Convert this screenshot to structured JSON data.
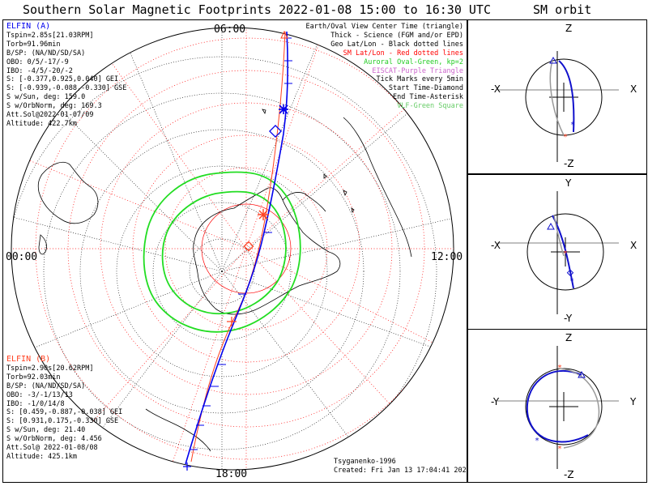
{
  "header": {
    "title": "Southern Solar Magnetic Footprints 2022-01-08 15:00 to 16:30 UTC",
    "orbit_title": "SM orbit"
  },
  "main_plot": {
    "mlt_labels": {
      "top": "06:00",
      "left": "00:00",
      "right": "12:00",
      "bottom": "18:00"
    },
    "colors": {
      "sc_a": "#0000ff",
      "sc_b": "#ff4020",
      "oval": "#22dd22",
      "geo_grid": "#000000",
      "sm_grid": "#ff0000"
    }
  },
  "spacecraft_a": {
    "name": "ELFIN (A)",
    "lines": [
      "Tspin=2.85s[21.03RPM]",
      "Torb=91.96min",
      "B/SP: (NA/ND/SD/SA)",
      "OBO: 0/5/-17/-9",
      "IBO: -4/5/-20/-2",
      "S: [-0.377,0.925,0.040] GEI",
      "S: [-0.939,-0.088,-0.330] GSE",
      "S w/Sun, deg: 159.0",
      "S w/OrbNorm, deg: 169.3",
      "Att.Sol@2022-01-07/09",
      "Altitude: 422.7km"
    ]
  },
  "spacecraft_b": {
    "name": "ELFIN (B)",
    "lines": [
      "Tspin=2.90s[20.62RPM]",
      "Torb=92.03min",
      "B/SP: (NA/ND/SD/SA)",
      "OBO: -3/-1/13/13",
      "IBO: -1/0/14/8",
      "S: [0.459,-0.887,-0.038] GEI",
      "S: [0.931,0.175,-0.330] GSE",
      "S w/Sun, deg: 21.40",
      "S w/OrbNorm, deg: 4.456",
      "Att.Sol@ 2022-01-08/08",
      "Altitude: 425.1km"
    ]
  },
  "legend": [
    {
      "text": "Earth/Oval View Center Time (triangle)",
      "color": "#000000"
    },
    {
      "text": "Thick - Science (FGM and/or EPD)",
      "color": "#000000"
    },
    {
      "text": "Geo Lat/Lon - Black dotted lines",
      "color": "#000000"
    },
    {
      "text": "SM Lat/Lon - Red dotted lines",
      "color": "#ff0000"
    },
    {
      "text": "Auroral Oval-Green, kp=2",
      "color": "#22cc22"
    },
    {
      "text": "EISCAT-Purple Triangle",
      "color": "#cc66cc"
    },
    {
      "text": "Tick Marks every 5min",
      "color": "#000000"
    },
    {
      "text": "Start Time-Diamond",
      "color": "#000000"
    },
    {
      "text": "End Time-Asterisk",
      "color": "#000000"
    },
    {
      "text": "VLF-Green Square",
      "color": "#66cc66"
    }
  ],
  "credits": {
    "author": "Tsyganenko-1996",
    "created": "Created: Fri Jan 13 17:04:41 2023"
  },
  "orbit_panels": [
    {
      "top": "Z",
      "bottom": "-Z",
      "left": "-X",
      "right": "X"
    },
    {
      "top": "Y",
      "bottom": "-Y",
      "left": "-X",
      "right": "X"
    },
    {
      "top": "Z",
      "bottom": "-Z",
      "left": "-Y",
      "right": "Y"
    }
  ]
}
